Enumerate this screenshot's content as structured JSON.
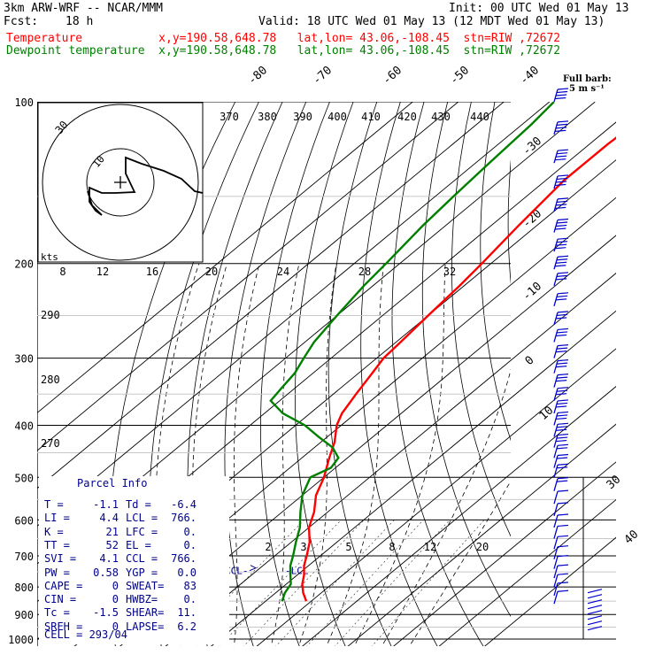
{
  "header": {
    "model": "3km ARW-WRF -- NCAR/MMM",
    "init": "Init: 00 UTC Wed 01 May 13",
    "fcst_label": "Fcst:",
    "fcst_value": "18 h",
    "valid": "Valid: 18 UTC Wed 01 May 13 (12 MDT Wed 01 May 13)",
    "temp_line": "Temperature           x,y=190.58,648.78   lat,lon= 43.06,-108.45  stn=RIW ,72672",
    "dew_line": "Dewpoint temperature  x,y=190.58,648.78   lat,lon= 43.06,-108.45  stn=RIW ,72672"
  },
  "colors": {
    "temperature": "#ff0000",
    "dewpoint": "#008000",
    "text": "#000000",
    "parcel": "#00008b",
    "wind": "#0000cc",
    "grid": "#000000"
  },
  "barb_legend": {
    "line1": "Full barb:",
    "line2": "5 m s⁻¹"
  },
  "hodograph": {
    "units": "kts",
    "ring_label_inner": "10",
    "ring_label_outer": "30"
  },
  "parcel_info": {
    "title": "Parcel Info",
    "rows": [
      [
        "T  =",
        "-1.1",
        "Td =",
        "-6.4"
      ],
      [
        "LI =",
        "4.4",
        "LCL =",
        "766."
      ],
      [
        "K  =",
        "21",
        "LFC =",
        "0."
      ],
      [
        "TT =",
        "52",
        "EL  =",
        "0."
      ],
      [
        "SVI =",
        "4.1",
        "CCL =",
        "766."
      ],
      [
        "PW  =",
        "0.58",
        "YGP =",
        "0.0"
      ],
      [
        "CAPE =",
        "0",
        "SWEAT=",
        "83"
      ],
      [
        "CIN  =",
        "0",
        "HWBZ=",
        "0."
      ],
      [
        "Tc   =",
        "-1.5",
        "SHEAR=",
        "11."
      ],
      [
        "SREH =",
        "0",
        "LAPSE=",
        "6.2"
      ]
    ],
    "cell": "CELL = 293/04",
    "ccl_marker": "CCL-",
    "lcl_marker": "-LCL"
  },
  "chart_data": {
    "type": "line",
    "title": "",
    "yaxis": {
      "label": "",
      "scale": "log",
      "ticks": [
        100,
        200,
        300,
        400,
        500,
        600,
        700,
        800,
        900,
        1000
      ],
      "range": [
        1000,
        100
      ]
    },
    "temperature_ticks": [
      -80,
      -70,
      -60,
      -50,
      -40,
      -30,
      -20,
      -10,
      0,
      10,
      30,
      40
    ],
    "theta_labels": [
      370,
      380,
      390,
      400,
      410,
      420,
      430,
      440
    ],
    "theta_side_labels": [
      290,
      280,
      270
    ],
    "mixing_ratio_labels": [
      "2",
      "3",
      "5",
      "8",
      "12",
      "20"
    ],
    "vapor_pressure_labels": [
      "8",
      "12",
      "16",
      "20",
      "24",
      "28",
      "32"
    ],
    "series": [
      {
        "name": "Temperature",
        "p": [
          850,
          820,
          790,
          760,
          730,
          700,
          660,
          620,
          580,
          540,
          500,
          460,
          430,
          400,
          380,
          350,
          320,
          300,
          280,
          250,
          220,
          200,
          170,
          140,
          120,
          100
        ],
        "t": [
          -1.1,
          -4,
          -6.5,
          -8.5,
          -11,
          -13,
          -16,
          -20,
          -23,
          -27,
          -30,
          -34,
          -37,
          -41,
          -43,
          -45,
          -47,
          -48.5,
          -49,
          -50,
          -51,
          -52,
          -54,
          -56,
          -56,
          -55
        ]
      },
      {
        "name": "Dewpoint temperature",
        "p": [
          850,
          820,
          790,
          760,
          730,
          700,
          660,
          620,
          580,
          540,
          500,
          480,
          460,
          440,
          420,
          400,
          380,
          360,
          340,
          320,
          300,
          280,
          250,
          220,
          200,
          170,
          150,
          130,
          110,
          100
        ],
        "t": [
          -6.4,
          -8,
          -9,
          -11.5,
          -14,
          -16,
          -19,
          -22,
          -26,
          -30,
          -33,
          -31,
          -32,
          -36,
          -42,
          -48,
          -56,
          -62,
          -63,
          -64,
          -66,
          -68,
          -70,
          -72,
          -73,
          -75,
          -76,
          -77,
          -78,
          -79
        ]
      }
    ],
    "hodograph_trace": [
      [
        0,
        10
      ],
      [
        1,
        20
      ],
      [
        3,
        30
      ],
      [
        5,
        40
      ],
      [
        7,
        30
      ],
      [
        6,
        20
      ],
      [
        4,
        10
      ],
      [
        2,
        5
      ]
    ],
    "winds": {
      "p": [
        100,
        115,
        130,
        145,
        160,
        175,
        190,
        205,
        220,
        240,
        260,
        280,
        300,
        320,
        340,
        360,
        380,
        400,
        420,
        440,
        460,
        480,
        500,
        530,
        560,
        590,
        620,
        650,
        680,
        710,
        740,
        770,
        800,
        830,
        860
      ],
      "speed_ms": [
        20,
        20,
        20,
        20,
        20,
        20,
        20,
        20,
        15,
        15,
        15,
        15,
        15,
        15,
        15,
        15,
        15,
        15,
        15,
        15,
        10,
        10,
        10,
        10,
        5,
        5,
        5,
        5,
        5,
        5,
        5,
        5,
        5,
        5,
        5
      ],
      "dir_deg": [
        290,
        290,
        290,
        290,
        290,
        290,
        290,
        290,
        290,
        290,
        290,
        290,
        290,
        290,
        290,
        290,
        290,
        290,
        290,
        290,
        290,
        290,
        280,
        280,
        280,
        270,
        270,
        270,
        250,
        240,
        240,
        230,
        220,
        210,
        210
      ]
    }
  }
}
